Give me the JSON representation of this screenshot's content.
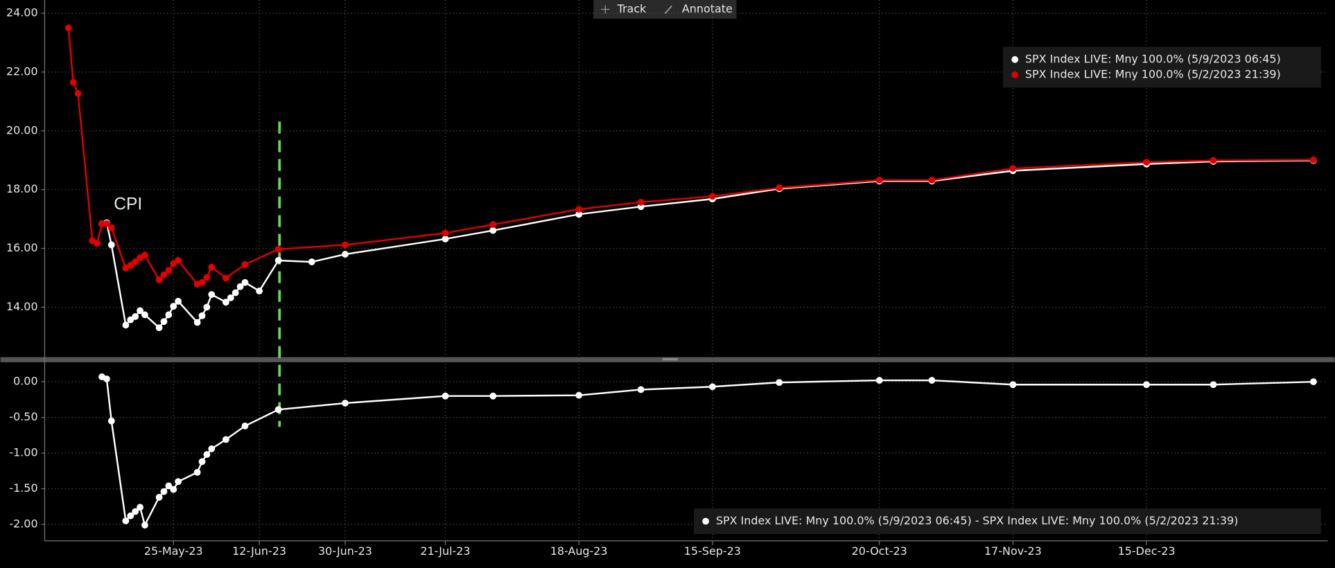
{
  "toolbar": {
    "track": "Track",
    "annotate": "Annotate"
  },
  "chart_data": [
    {
      "type": "line",
      "annotations": [
        "CPI"
      ],
      "xlim": [
        "2023-04-28",
        "2024-01-22"
      ],
      "ylim": [
        12.3,
        24.45
      ],
      "yticks": [
        {
          "value": 14,
          "label": "14.00"
        },
        {
          "value": 16,
          "label": "16.00"
        },
        {
          "value": 18,
          "label": "18.00"
        },
        {
          "value": 20,
          "label": "20.00"
        },
        {
          "value": 22,
          "label": "22.00"
        },
        {
          "value": 24,
          "label": "24.00"
        }
      ],
      "grid": true,
      "legend": "top-right",
      "series": [
        {
          "name": "SPX Index LIVE: Mny 100.0% (5/9/2023 06:45)",
          "color": "#ffffff",
          "x": [
            "2023-05-10",
            "2023-05-11",
            "2023-05-12",
            "2023-05-15",
            "2023-05-16",
            "2023-05-17",
            "2023-05-18",
            "2023-05-19",
            "2023-05-22",
            "2023-05-23",
            "2023-05-24",
            "2023-05-25",
            "2023-05-26",
            "2023-05-30",
            "2023-05-31",
            "2023-06-01",
            "2023-06-02",
            "2023-06-05",
            "2023-06-06",
            "2023-06-07",
            "2023-06-08",
            "2023-06-09",
            "2023-06-12",
            "2023-06-16",
            "2023-06-23",
            "2023-06-30",
            "2023-07-21",
            "2023-07-31",
            "2023-08-18",
            "2023-08-31",
            "2023-09-15",
            "2023-09-29",
            "2023-10-20",
            "2023-10-31",
            "2023-11-17",
            "2023-12-15",
            "2023-12-29",
            "2024-01-19"
          ],
          "values": [
            16.84,
            16.87,
            16.12,
            13.39,
            13.57,
            13.68,
            13.88,
            13.74,
            13.3,
            13.51,
            13.74,
            14.03,
            14.2,
            13.48,
            13.71,
            14.0,
            14.43,
            14.17,
            14.32,
            14.49,
            14.7,
            14.84,
            14.55,
            15.59,
            15.54,
            15.8,
            16.32,
            16.61,
            17.16,
            17.42,
            17.68,
            18.03,
            18.29,
            18.29,
            18.64,
            18.87,
            18.96,
            18.99
          ]
        },
        {
          "name": "SPX Index LIVE: Mny 100.0% (5/2/2023 21:39)",
          "color": "#e00000",
          "x": [
            "2023-05-03",
            "2023-05-04",
            "2023-05-05",
            "2023-05-08",
            "2023-05-09",
            "2023-05-10",
            "2023-05-11",
            "2023-05-12",
            "2023-05-15",
            "2023-05-16",
            "2023-05-17",
            "2023-05-18",
            "2023-05-19",
            "2023-05-22",
            "2023-05-23",
            "2023-05-24",
            "2023-05-25",
            "2023-05-26",
            "2023-05-30",
            "2023-05-31",
            "2023-06-01",
            "2023-06-02",
            "2023-06-05",
            "2023-06-09",
            "2023-06-16",
            "2023-06-30",
            "2023-07-21",
            "2023-07-31",
            "2023-08-18",
            "2023-08-31",
            "2023-09-15",
            "2023-09-29",
            "2023-10-20",
            "2023-10-31",
            "2023-11-17",
            "2023-12-15",
            "2023-12-29",
            "2024-01-19"
          ],
          "values": [
            23.5,
            21.65,
            21.27,
            16.26,
            16.17,
            16.84,
            16.84,
            16.7,
            15.33,
            15.42,
            15.54,
            15.68,
            15.77,
            14.93,
            15.1,
            15.25,
            15.48,
            15.59,
            14.78,
            14.84,
            15.01,
            15.36,
            14.99,
            15.45,
            15.97,
            16.12,
            16.52,
            16.81,
            17.33,
            17.57,
            17.77,
            18.06,
            18.32,
            18.32,
            18.72,
            18.93,
            18.99,
            19.01
          ]
        }
      ]
    },
    {
      "type": "line",
      "xlim": [
        "2023-04-28",
        "2024-01-22"
      ],
      "xticks": [
        {
          "value": "2023-05-25",
          "label": "25-May-23"
        },
        {
          "value": "2023-06-12",
          "label": "12-Jun-23"
        },
        {
          "value": "2023-06-30",
          "label": "30-Jun-23"
        },
        {
          "value": "2023-07-21",
          "label": "21-Jul-23"
        },
        {
          "value": "2023-08-18",
          "label": "18-Aug-23"
        },
        {
          "value": "2023-09-15",
          "label": "15-Sep-23"
        },
        {
          "value": "2023-10-20",
          "label": "20-Oct-23"
        },
        {
          "value": "2023-11-17",
          "label": "17-Nov-23"
        },
        {
          "value": "2023-12-15",
          "label": "15-Dec-23"
        }
      ],
      "ylim": [
        -2.23,
        0.25
      ],
      "yticks": [
        {
          "value": -2,
          "label": "-2.00"
        },
        {
          "value": -1.5,
          "label": "-1.50"
        },
        {
          "value": -1,
          "label": "-1.00"
        },
        {
          "value": -0.5,
          "label": "-0.50"
        },
        {
          "value": 0,
          "label": "0.00"
        }
      ],
      "grid": true,
      "legend": "bottom-right",
      "series": [
        {
          "name": "SPX Index LIVE: Mny 100.0% (5/9/2023 06:45) - SPX Index LIVE: Mny 100.0% (5/2/2023 21:39)",
          "color": "#ffffff",
          "x": [
            "2023-05-10",
            "2023-05-11",
            "2023-05-12",
            "2023-05-15",
            "2023-05-16",
            "2023-05-17",
            "2023-05-18",
            "2023-05-19",
            "2023-05-22",
            "2023-05-23",
            "2023-05-24",
            "2023-05-25",
            "2023-05-26",
            "2023-05-30",
            "2023-05-31",
            "2023-06-01",
            "2023-06-02",
            "2023-06-05",
            "2023-06-09",
            "2023-06-16",
            "2023-06-30",
            "2023-07-21",
            "2023-07-31",
            "2023-08-18",
            "2023-08-31",
            "2023-09-15",
            "2023-09-29",
            "2023-10-20",
            "2023-10-31",
            "2023-11-17",
            "2023-12-15",
            "2023-12-29",
            "2024-01-19"
          ],
          "values": [
            0.07,
            0.04,
            -0.55,
            -1.95,
            -1.88,
            -1.82,
            -1.76,
            -2.01,
            -1.62,
            -1.54,
            -1.46,
            -1.51,
            -1.4,
            -1.27,
            -1.12,
            -1.02,
            -0.94,
            -0.81,
            -0.62,
            -0.39,
            -0.3,
            -0.2,
            -0.2,
            -0.19,
            -0.11,
            -0.07,
            -0.01,
            0.02,
            0.02,
            -0.04,
            -0.04,
            -0.04,
            0.0
          ]
        }
      ]
    }
  ]
}
